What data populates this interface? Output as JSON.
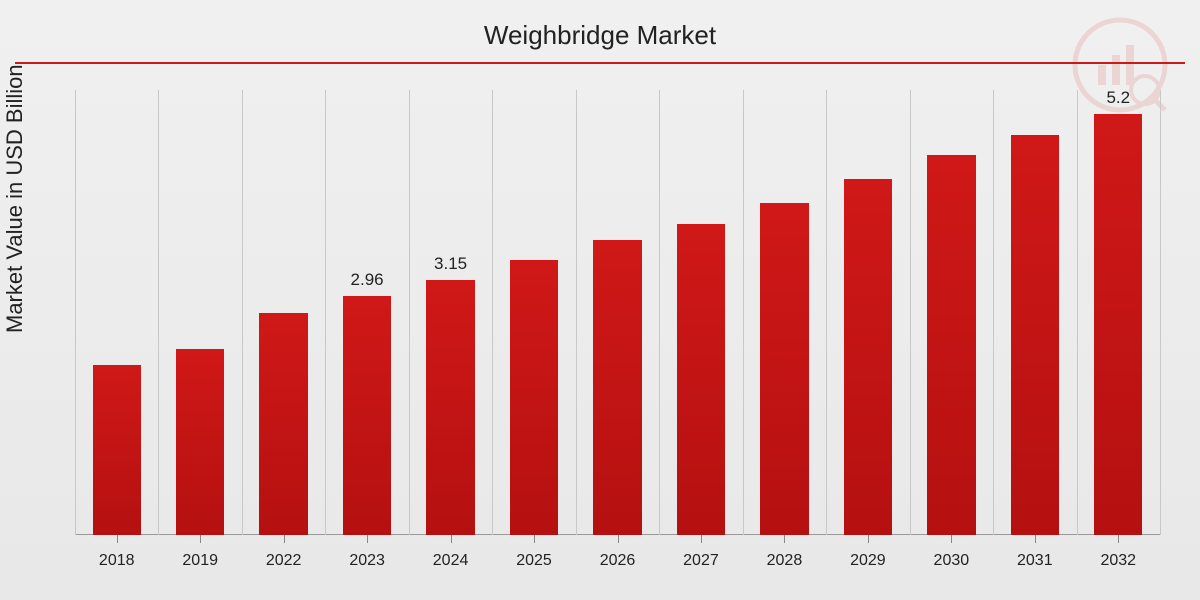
{
  "chart": {
    "type": "bar",
    "title": "Weighbridge Market",
    "ylabel": "Market Value in USD Billion",
    "title_fontsize": 26,
    "ylabel_fontsize": 22,
    "xlabel_fontsize": 16,
    "barlabel_fontsize": 17,
    "categories": [
      "2018",
      "2019",
      "2022",
      "2023",
      "2024",
      "2025",
      "2026",
      "2027",
      "2028",
      "2029",
      "2030",
      "2031",
      "2032"
    ],
    "values": [
      2.1,
      2.3,
      2.75,
      2.96,
      3.15,
      3.4,
      3.65,
      3.85,
      4.1,
      4.4,
      4.7,
      4.95,
      5.2
    ],
    "show_labels": [
      false,
      false,
      false,
      true,
      true,
      false,
      false,
      false,
      false,
      false,
      false,
      false,
      true
    ],
    "ylim": [
      0,
      5.5
    ],
    "bar_color_top": "#d01818",
    "bar_color_bottom": "#b51010",
    "grid_color": "#c8c8c8",
    "background_gradient_top": "#f0f0f0",
    "background_gradient_bottom": "#e8e8e8",
    "header_line_color": "#d01818",
    "text_color": "#222222",
    "bar_width_ratio": 0.58
  }
}
